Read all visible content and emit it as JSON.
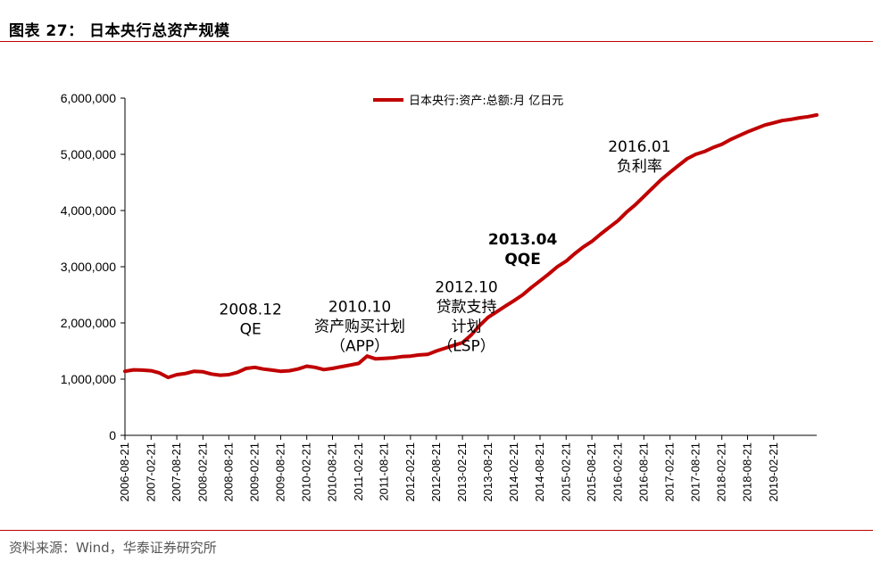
{
  "header": {
    "title": "图表 27：  日本央行总资产规模"
  },
  "footer": {
    "source": "资料来源：Wind，华泰证券研究所"
  },
  "colors": {
    "series": "#c00000",
    "rule": "#c00000"
  },
  "chart_data": {
    "type": "line",
    "ylim": [
      0,
      6000000
    ],
    "y_ticks": [
      0,
      1000000,
      2000000,
      3000000,
      4000000,
      5000000,
      6000000
    ],
    "y_tick_labels": [
      "0",
      "1,000,000",
      "2,000,000",
      "3,000,000",
      "4,000,000",
      "5,000,000",
      "6,000,000"
    ],
    "x_tick_labels": [
      "2006-08-21",
      "2007-02-21",
      "2007-08-21",
      "2008-02-21",
      "2008-08-21",
      "2009-02-21",
      "2009-08-21",
      "2010-02-21",
      "2010-08-21",
      "2011-02-21",
      "2011-08-21",
      "2012-02-21",
      "2012-08-21",
      "2013-02-21",
      "2013-08-21",
      "2014-02-21",
      "2014-08-21",
      "2015-02-21",
      "2015-08-21",
      "2016-02-21",
      "2016-08-21",
      "2017-02-21",
      "2017-08-21",
      "2018-02-21",
      "2018-08-21",
      "2019-02-21"
    ],
    "x_range": [
      "2006-08-21",
      "2019-12-21"
    ],
    "grid": false,
    "legend_position": "top-right",
    "series": [
      {
        "name": "日本央行:资产:总额:月 亿日元",
        "points": [
          [
            "2006-08-21",
            1140000
          ],
          [
            "2006-10-21",
            1165000
          ],
          [
            "2006-12-21",
            1160000
          ],
          [
            "2007-02-21",
            1150000
          ],
          [
            "2007-04-21",
            1110000
          ],
          [
            "2007-06-21",
            1030000
          ],
          [
            "2007-08-21",
            1080000
          ],
          [
            "2007-10-21",
            1100000
          ],
          [
            "2007-12-21",
            1140000
          ],
          [
            "2008-02-21",
            1130000
          ],
          [
            "2008-04-21",
            1090000
          ],
          [
            "2008-06-21",
            1070000
          ],
          [
            "2008-08-21",
            1080000
          ],
          [
            "2008-10-21",
            1120000
          ],
          [
            "2008-12-21",
            1190000
          ],
          [
            "2009-02-21",
            1210000
          ],
          [
            "2009-04-21",
            1180000
          ],
          [
            "2009-06-21",
            1160000
          ],
          [
            "2009-08-21",
            1140000
          ],
          [
            "2009-10-21",
            1150000
          ],
          [
            "2009-12-21",
            1180000
          ],
          [
            "2010-02-21",
            1230000
          ],
          [
            "2010-04-21",
            1210000
          ],
          [
            "2010-06-21",
            1170000
          ],
          [
            "2010-08-21",
            1190000
          ],
          [
            "2010-10-21",
            1220000
          ],
          [
            "2010-12-21",
            1250000
          ],
          [
            "2011-02-21",
            1280000
          ],
          [
            "2011-04-21",
            1410000
          ],
          [
            "2011-06-21",
            1360000
          ],
          [
            "2011-08-21",
            1370000
          ],
          [
            "2011-10-21",
            1380000
          ],
          [
            "2011-12-21",
            1400000
          ],
          [
            "2012-02-21",
            1410000
          ],
          [
            "2012-04-21",
            1430000
          ],
          [
            "2012-06-21",
            1440000
          ],
          [
            "2012-08-21",
            1500000
          ],
          [
            "2012-10-21",
            1550000
          ],
          [
            "2012-12-21",
            1600000
          ],
          [
            "2013-02-21",
            1650000
          ],
          [
            "2013-04-21",
            1780000
          ],
          [
            "2013-06-21",
            1950000
          ],
          [
            "2013-08-21",
            2100000
          ],
          [
            "2013-10-21",
            2200000
          ],
          [
            "2013-12-21",
            2300000
          ],
          [
            "2014-02-21",
            2400000
          ],
          [
            "2014-04-21",
            2500000
          ],
          [
            "2014-06-21",
            2630000
          ],
          [
            "2014-08-21",
            2750000
          ],
          [
            "2014-10-21",
            2870000
          ],
          [
            "2014-12-21",
            3000000
          ],
          [
            "2015-02-21",
            3100000
          ],
          [
            "2015-04-21",
            3230000
          ],
          [
            "2015-06-21",
            3350000
          ],
          [
            "2015-08-21",
            3450000
          ],
          [
            "2015-10-21",
            3580000
          ],
          [
            "2015-12-21",
            3700000
          ],
          [
            "2016-02-21",
            3820000
          ],
          [
            "2016-04-21",
            3970000
          ],
          [
            "2016-06-21",
            4100000
          ],
          [
            "2016-08-21",
            4250000
          ],
          [
            "2016-10-21",
            4400000
          ],
          [
            "2016-12-21",
            4550000
          ],
          [
            "2017-02-21",
            4680000
          ],
          [
            "2017-04-21",
            4800000
          ],
          [
            "2017-06-21",
            4920000
          ],
          [
            "2017-08-21",
            5000000
          ],
          [
            "2017-10-21",
            5050000
          ],
          [
            "2017-12-21",
            5120000
          ],
          [
            "2018-02-21",
            5180000
          ],
          [
            "2018-04-21",
            5260000
          ],
          [
            "2018-06-21",
            5330000
          ],
          [
            "2018-08-21",
            5400000
          ],
          [
            "2018-10-21",
            5460000
          ],
          [
            "2018-12-21",
            5520000
          ],
          [
            "2019-02-21",
            5560000
          ],
          [
            "2019-04-21",
            5600000
          ],
          [
            "2019-06-21",
            5620000
          ],
          [
            "2019-08-21",
            5650000
          ],
          [
            "2019-10-21",
            5670000
          ],
          [
            "2019-12-21",
            5700000
          ]
        ]
      }
    ],
    "annotations": [
      {
        "lines": [
          "2008.12",
          "QE"
        ],
        "bold": false,
        "anchor": [
          "2009-01-21",
          2150000
        ]
      },
      {
        "lines": [
          "2010.10",
          "资产购买计划",
          "（APP）"
        ],
        "bold": false,
        "anchor": [
          "2011-03-01",
          2200000
        ]
      },
      {
        "lines": [
          "2012.10",
          "贷款支持",
          "计划",
          "（LSP）"
        ],
        "bold": false,
        "anchor": [
          "2013-03-21",
          2550000
        ]
      },
      {
        "lines": [
          "2013.04",
          "QQE"
        ],
        "bold": true,
        "anchor": [
          "2014-04-21",
          3400000
        ]
      },
      {
        "lines": [
          "2016.01",
          "负利率"
        ],
        "bold": false,
        "anchor": [
          "2016-07-21",
          5050000
        ]
      }
    ]
  }
}
